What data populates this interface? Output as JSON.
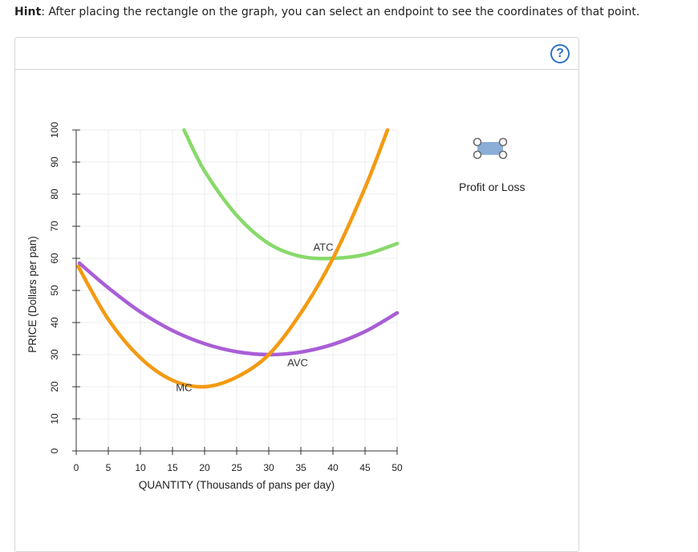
{
  "hint": {
    "label": "Hint",
    "text": ": After placing the rectangle on the graph, you can select an endpoint to see the coordinates of that point."
  },
  "help_button": {
    "label": "?"
  },
  "tool": {
    "label": "Profit or Loss",
    "icon": "rectangle-tool-icon",
    "color": "#8aaed8"
  },
  "chart_data": {
    "type": "line",
    "xlabel": "QUANTITY (Thousands of pans per day)",
    "ylabel": "PRICE (Dollars per pan)",
    "xlim": [
      0,
      50
    ],
    "ylim": [
      0,
      100
    ],
    "xticks": [
      0,
      5,
      10,
      15,
      20,
      25,
      30,
      35,
      40,
      45,
      50
    ],
    "yticks": [
      0,
      10,
      20,
      30,
      40,
      50,
      60,
      70,
      80,
      90,
      100
    ],
    "grid": true,
    "series": [
      {
        "name": "ATC",
        "color": "#88d96b",
        "label_at": [
          38.5,
          63.5
        ],
        "x": [
          16.8,
          20,
          25,
          30,
          35,
          40,
          45,
          50
        ],
        "y": [
          100,
          87.2,
          73.4,
          64.6,
          60.6,
          60.0,
          61.2,
          64.6
        ]
      },
      {
        "name": "AVC",
        "color": "#a95ed6",
        "label_at": [
          34.5,
          27.5
        ],
        "x": [
          0.5,
          5,
          10,
          15,
          20,
          25,
          30,
          35,
          40,
          45,
          50
        ],
        "y": [
          58.5,
          50.8,
          43.3,
          37.5,
          33.4,
          30.9,
          30.0,
          30.8,
          33.2,
          37.2,
          43.0
        ]
      },
      {
        "name": "MC",
        "color": "#f39a12",
        "label_at": [
          16.8,
          19.8
        ],
        "x": [
          0.3,
          5,
          10,
          15,
          20,
          25,
          30,
          35,
          40,
          45,
          48.5
        ],
        "y": [
          57.5,
          41.0,
          29.0,
          22.0,
          20.0,
          23.0,
          30.0,
          43.0,
          60.0,
          82.0,
          100
        ]
      }
    ]
  }
}
